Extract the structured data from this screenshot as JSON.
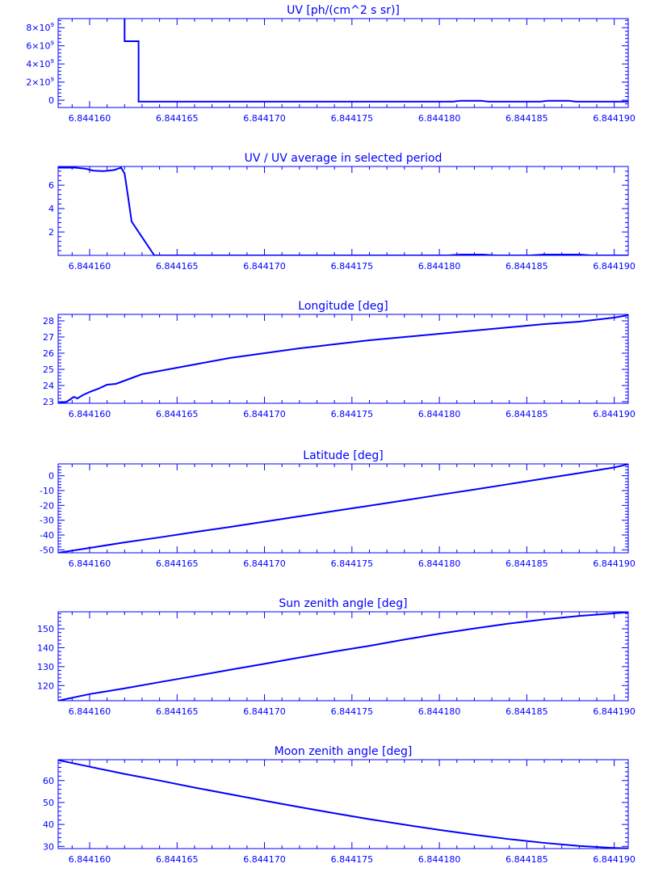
{
  "chart_data": [
    {
      "type": "line",
      "title": "UV [ph/(cm^2 s sr)]",
      "ylim": [
        -800000000,
        9000000000
      ],
      "xlim": [
        6.8441582,
        6.8441908
      ],
      "xticks": [
        "6.844160",
        "6.844165",
        "6.844170",
        "6.844175",
        "6.844180",
        "6.844185",
        "6.844190"
      ],
      "yticks": [
        {
          "v": 0,
          "base": "0",
          "exp": ""
        },
        {
          "v": 2000000000,
          "base": "2×10",
          "exp": "9"
        },
        {
          "v": 4000000000,
          "base": "4×10",
          "exp": "9"
        },
        {
          "v": 6000000000,
          "base": "6×10",
          "exp": "9"
        },
        {
          "v": 8000000000,
          "base": "8×10",
          "exp": "9"
        }
      ],
      "x": [
        6.844162,
        6.844162,
        6.8441628,
        6.8441628,
        6.8441808,
        6.8441812,
        6.8441824,
        6.8441828,
        6.8441858,
        6.8441862,
        6.8441874,
        6.8441878,
        6.8441908
      ],
      "y": [
        9000000000,
        6500000000,
        6500000000,
        -150000000,
        -150000000,
        -60000000,
        -60000000,
        -150000000,
        -150000000,
        -60000000,
        -60000000,
        -150000000,
        -150000000
      ],
      "color": "#0000ff"
    },
    {
      "type": "line",
      "title": "UV / UV average in selected period",
      "ylim": [
        0,
        7.6
      ],
      "xlim": [
        6.8441582,
        6.8441908
      ],
      "xticks": [
        "6.844160",
        "6.844165",
        "6.844170",
        "6.844175",
        "6.844180",
        "6.844185",
        "6.844190"
      ],
      "yticks": [
        {
          "v": 2,
          "base": "2",
          "exp": ""
        },
        {
          "v": 4,
          "base": "4",
          "exp": ""
        },
        {
          "v": 6,
          "base": "6",
          "exp": ""
        }
      ],
      "x": [
        6.8441582,
        6.8441592,
        6.8441598,
        6.8441602,
        6.8441608,
        6.8441614,
        6.8441618,
        6.844162,
        6.8441622,
        6.8441624,
        6.8441628,
        6.8441637,
        6.8441805,
        6.8441812,
        6.8441825,
        6.8441832,
        6.8441852,
        6.844186,
        6.844188,
        6.8441887,
        6.8441908
      ],
      "y": [
        7.5,
        7.5,
        7.4,
        7.25,
        7.2,
        7.3,
        7.5,
        7.0,
        5.0,
        2.9,
        2.0,
        0.0,
        0.0,
        0.07,
        0.07,
        0.0,
        0.0,
        0.07,
        0.07,
        0.0,
        0.0
      ],
      "color": "#0000ff"
    },
    {
      "type": "line",
      "title": "Longitude [deg]",
      "ylim": [
        22.9,
        28.4
      ],
      "xlim": [
        6.8441582,
        6.8441908
      ],
      "xticks": [
        "6.844160",
        "6.844165",
        "6.844170",
        "6.844175",
        "6.844180",
        "6.844185",
        "6.844190"
      ],
      "yticks": [
        {
          "v": 23,
          "base": "23",
          "exp": ""
        },
        {
          "v": 24,
          "base": "24",
          "exp": ""
        },
        {
          "v": 25,
          "base": "25",
          "exp": ""
        },
        {
          "v": 26,
          "base": "26",
          "exp": ""
        },
        {
          "v": 27,
          "base": "27",
          "exp": ""
        },
        {
          "v": 28,
          "base": "28",
          "exp": ""
        }
      ],
      "x": [
        6.8441582,
        6.8441587,
        6.8441591,
        6.8441593,
        6.8441596,
        6.84416,
        6.8441605,
        6.844161,
        6.8441615,
        6.844162,
        6.8441625,
        6.844163,
        6.844164,
        6.844165,
        6.844166,
        6.844167,
        6.844168,
        6.844169,
        6.84417,
        6.844172,
        6.844174,
        6.844176,
        6.844178,
        6.84418,
        6.844182,
        6.844184,
        6.844186,
        6.844188,
        6.84419,
        6.8441908
      ],
      "y": [
        22.9,
        23.0,
        23.3,
        23.2,
        23.4,
        23.6,
        23.8,
        24.05,
        24.1,
        24.3,
        24.5,
        24.7,
        24.9,
        25.1,
        25.3,
        25.5,
        25.7,
        25.85,
        26.0,
        26.3,
        26.55,
        26.8,
        27.0,
        27.2,
        27.4,
        27.6,
        27.8,
        27.95,
        28.2,
        28.35
      ],
      "color": "#0000ff"
    },
    {
      "type": "line",
      "title": "Latitude [deg]",
      "ylim": [
        -52,
        8
      ],
      "xlim": [
        6.8441582,
        6.8441908
      ],
      "xticks": [
        "6.844160",
        "6.844165",
        "6.844170",
        "6.844175",
        "6.844180",
        "6.844185",
        "6.844190"
      ],
      "yticks": [
        {
          "v": -50,
          "base": "-50",
          "exp": ""
        },
        {
          "v": -40,
          "base": "-40",
          "exp": ""
        },
        {
          "v": -30,
          "base": "-30",
          "exp": ""
        },
        {
          "v": -20,
          "base": "-20",
          "exp": ""
        },
        {
          "v": -10,
          "base": "-10",
          "exp": ""
        },
        {
          "v": 0,
          "base": "0",
          "exp": ""
        }
      ],
      "x": [
        6.8441582,
        6.84416,
        6.844162,
        6.844164,
        6.844166,
        6.844168,
        6.84417,
        6.844172,
        6.844174,
        6.844176,
        6.844178,
        6.84418,
        6.844182,
        6.844184,
        6.844186,
        6.844188,
        6.84419,
        6.8441908
      ],
      "y": [
        -52.0,
        -48.7,
        -45.0,
        -41.6,
        -38.0,
        -34.6,
        -31.0,
        -27.4,
        -23.8,
        -20.2,
        -16.6,
        -12.9,
        -9.3,
        -5.6,
        -1.9,
        1.8,
        5.6,
        7.8
      ],
      "color": "#0000ff"
    },
    {
      "type": "line",
      "title": "Sun zenith angle [deg]",
      "ylim": [
        112,
        159
      ],
      "xlim": [
        6.8441582,
        6.8441908
      ],
      "xticks": [
        "6.844160",
        "6.844165",
        "6.844170",
        "6.844175",
        "6.844180",
        "6.844185",
        "6.844190"
      ],
      "yticks": [
        {
          "v": 120,
          "base": "120",
          "exp": ""
        },
        {
          "v": 130,
          "base": "130",
          "exp": ""
        },
        {
          "v": 140,
          "base": "140",
          "exp": ""
        },
        {
          "v": 150,
          "base": "150",
          "exp": ""
        }
      ],
      "x": [
        6.8441582,
        6.84416,
        6.844162,
        6.844164,
        6.844166,
        6.844168,
        6.84417,
        6.844172,
        6.844174,
        6.844176,
        6.844178,
        6.84418,
        6.844182,
        6.844184,
        6.844186,
        6.844188,
        6.84419,
        6.8441908
      ],
      "y": [
        112.0,
        115.5,
        118.5,
        121.8,
        125.0,
        128.3,
        131.5,
        134.8,
        138.0,
        141.0,
        144.3,
        147.4,
        150.2,
        152.8,
        155.0,
        156.8,
        158.2,
        158.8
      ],
      "color": "#0000ff"
    },
    {
      "type": "line",
      "title": "Moon zenith angle [deg]",
      "ylim": [
        29,
        69.5
      ],
      "xlim": [
        6.8441582,
        6.8441908
      ],
      "xticks": [
        "6.844160",
        "6.844165",
        "6.844170",
        "6.844175",
        "6.844180",
        "6.844185",
        "6.844190"
      ],
      "yticks": [
        {
          "v": 30,
          "base": "30",
          "exp": ""
        },
        {
          "v": 40,
          "base": "40",
          "exp": ""
        },
        {
          "v": 50,
          "base": "50",
          "exp": ""
        },
        {
          "v": 60,
          "base": "60",
          "exp": ""
        }
      ],
      "x": [
        6.8441582,
        6.84416,
        6.844162,
        6.844164,
        6.844166,
        6.844168,
        6.84417,
        6.844172,
        6.844174,
        6.844176,
        6.844178,
        6.84418,
        6.844182,
        6.844184,
        6.844186,
        6.844188,
        6.84419,
        6.8441908
      ],
      "y": [
        69.3,
        66.3,
        63.0,
        60.0,
        56.8,
        53.8,
        50.8,
        47.9,
        45.1,
        42.4,
        39.9,
        37.5,
        35.3,
        33.3,
        31.6,
        30.2,
        29.3,
        29.1
      ],
      "color": "#0000ff"
    }
  ]
}
